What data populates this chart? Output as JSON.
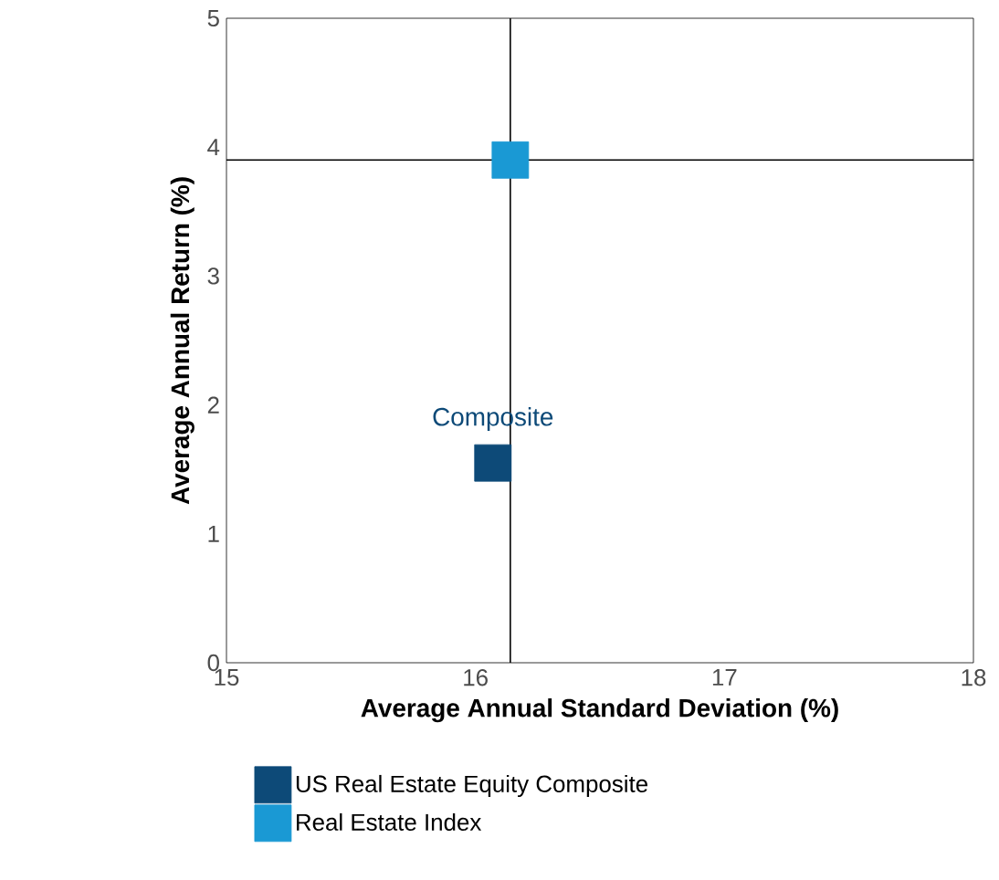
{
  "chart_data": {
    "type": "scatter",
    "xlabel": "Average Annual Standard Deviation (%)",
    "ylabel": "Average Annual Return (%)",
    "xlim": [
      15,
      18
    ],
    "xticks": [
      15,
      16,
      17,
      18
    ],
    "ylim": [
      0,
      5
    ],
    "yticks": [
      0,
      1,
      2,
      3,
      4,
      5
    ],
    "marker": "square",
    "legend": "bottom",
    "grid": false,
    "series": [
      {
        "name": "US Real Estate Equity Composite",
        "color": "#0d4a78",
        "x": [
          16.07
        ],
        "values": [
          1.55
        ]
      },
      {
        "name": "Real Estate Index",
        "color": "#1a99d4",
        "x": [
          16.14
        ],
        "values": [
          3.9
        ]
      }
    ],
    "ref_lines": [
      {
        "axis": "x",
        "value": 16.14,
        "color": "#000000"
      },
      {
        "axis": "y",
        "value": 3.9,
        "color": "#000000"
      }
    ],
    "annotations": [
      {
        "text": "Composite",
        "x": 16.07,
        "y": 1.55
      }
    ]
  }
}
